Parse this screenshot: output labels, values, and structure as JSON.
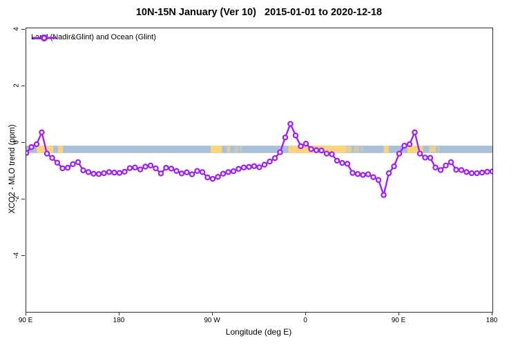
{
  "title": "10N-15N January (Ver 10)   2015-01-01 to 2020-12-18",
  "legend": {
    "label": "Land (Nadir&Glint) and Ocean (Glint)"
  },
  "axes": {
    "x": {
      "label": "Longitude (deg E)",
      "ticks": [
        {
          "label": "90 E",
          "pos": 90
        },
        {
          "label": "180",
          "pos": 180
        },
        {
          "label": "90 W",
          "pos": 270
        },
        {
          "label": "0",
          "pos": 360
        },
        {
          "label": "90 E",
          "pos": 450
        },
        {
          "label": "180",
          "pos": 540
        }
      ],
      "range": [
        90,
        540
      ]
    },
    "y": {
      "label": "XCO2 - MLO trend (ppm)",
      "ticks": [
        4,
        2,
        0,
        -2,
        -4
      ],
      "range": [
        -6,
        4.1
      ]
    }
  },
  "colors": {
    "series": "#A020F0",
    "marker_fill": "#ffffff",
    "ocean_band": "#a9bfda",
    "land_band": "#fcd47e",
    "axis": "#2b2b2b"
  },
  "chart_data": {
    "type": "line",
    "title": "10N-15N January (Ver 10)   2015-01-01 to 2020-12-18",
    "xlabel": "Longitude (deg E)",
    "ylabel": "XCO2 - MLO trend (ppm)",
    "xlim": [
      90,
      540
    ],
    "ylim": [
      -6,
      4.1
    ],
    "x_note": "longitude axis starts at 90E and wraps eastward around the globe to 180",
    "legend_position": "top-left",
    "grid": false,
    "series": [
      {
        "name": "Land (Nadir&Glint) and Ocean (Glint)",
        "color": "#A020F0",
        "marker": "open-circle",
        "x": [
          90,
          95,
          100,
          105,
          110,
          115,
          120,
          125,
          130,
          135,
          140,
          145,
          150,
          155,
          160,
          165,
          170,
          175,
          180,
          185,
          190,
          195,
          200,
          205,
          210,
          215,
          220,
          225,
          230,
          235,
          240,
          245,
          250,
          255,
          260,
          265,
          270,
          275,
          280,
          285,
          290,
          295,
          300,
          305,
          310,
          315,
          320,
          325,
          330,
          335,
          340,
          345,
          350,
          355,
          360,
          365,
          370,
          375,
          380,
          385,
          390,
          395,
          400,
          405,
          410,
          415,
          420,
          425,
          430,
          435,
          440,
          445,
          450,
          455,
          460,
          465,
          470,
          475,
          480,
          485,
          490,
          495,
          500,
          505,
          510,
          515,
          520,
          525,
          530,
          535,
          540
        ],
        "values": [
          -0.36,
          -0.15,
          -0.05,
          0.37,
          -0.38,
          -0.53,
          -0.7,
          -0.9,
          -0.88,
          -0.75,
          -0.68,
          -0.97,
          -1.03,
          -1.09,
          -1.1,
          -1.07,
          -1.03,
          -1.05,
          -1.06,
          -1.02,
          -0.89,
          -0.87,
          -0.94,
          -0.84,
          -0.8,
          -0.9,
          -1.08,
          -0.88,
          -0.91,
          -0.99,
          -1.08,
          -1.04,
          -1.11,
          -0.99,
          -1.03,
          -1.22,
          -1.27,
          -1.2,
          -1.09,
          -1.03,
          -1.0,
          -0.92,
          -0.87,
          -0.85,
          -0.82,
          -0.86,
          -0.77,
          -0.66,
          -0.54,
          -0.33,
          0.19,
          0.67,
          0.26,
          -0.12,
          -0.03,
          -0.22,
          -0.26,
          -0.27,
          -0.38,
          -0.4,
          -0.63,
          -0.71,
          -0.74,
          -1.06,
          -1.1,
          -1.13,
          -1.11,
          -1.21,
          -1.31,
          -1.84,
          -1.07,
          -0.83,
          -0.38,
          -0.1,
          -0.05,
          0.37,
          -0.38,
          -0.52,
          -0.53,
          -0.87,
          -0.96,
          -0.8,
          -0.68,
          -0.95,
          -0.96,
          -1.03,
          -1.07,
          -1.07,
          -1.05,
          -1.02,
          -1.01
        ]
      }
    ],
    "land_ocean_strip": {
      "description": "horizontal strip marking land (orange) vs ocean (blue) along the latitude band",
      "value_range": [
        -0.36,
        -0.1
      ],
      "land_segments": [
        [
          100,
          116
        ],
        [
          120.5,
          125.5
        ],
        [
          268,
          279
        ],
        [
          343,
          399
        ],
        [
          435,
          440
        ],
        [
          458,
          473
        ]
      ],
      "land_speckles": [
        [
          283.5,
          287,
          0.7
        ],
        [
          291,
          294.5,
          0.45
        ],
        [
          296,
          298,
          0.35
        ],
        [
          399.5,
          404,
          0.75
        ],
        [
          406,
          411.5,
          0.5
        ],
        [
          413,
          415,
          0.35
        ],
        [
          479,
          485.5,
          0.8
        ],
        [
          487,
          489,
          0.4
        ]
      ]
    }
  }
}
